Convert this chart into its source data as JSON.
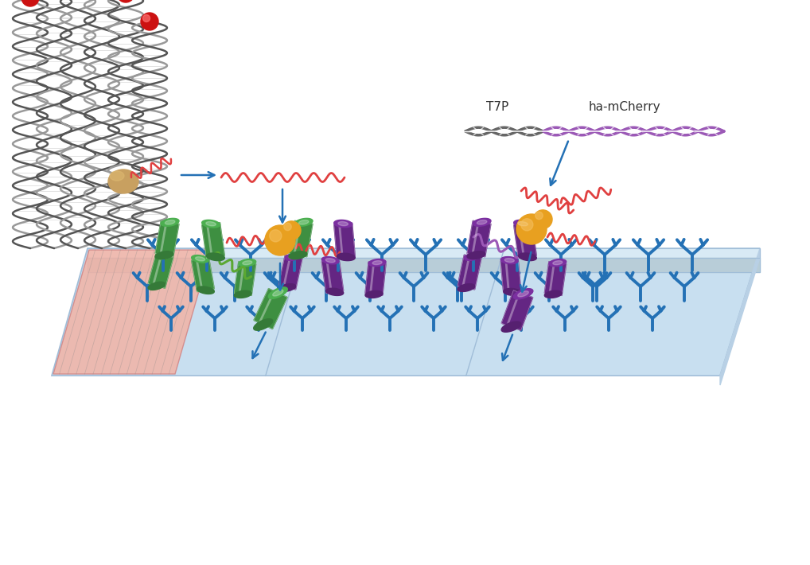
{
  "bg_color": "#ffffff",
  "label_T7P": "T7P",
  "label_hamCherry": "ha-mCherry",
  "dna_gray_color": "#777777",
  "dna_purple_color": "#9B59B6",
  "rna_color": "#E04040",
  "rna_green_color": "#5BA832",
  "rna_purple_color": "#9B59B6",
  "ribosome_color": "#E8A020",
  "protein_green_color": "#4CAF50",
  "protein_purple_color": "#7B2FA0",
  "antibody_color": "#2471B5",
  "chip_top_color": "#C8DFF0",
  "chip_edge_color": "#A0BDD8",
  "chip_side_color": "#D8EAF5",
  "chip_bottom_color": "#B8CDD8",
  "red_zone_color": "#F5B0A0",
  "arrow_color": "#2471B5",
  "gene_top_color": "#CC1111",
  "polymerase_color": "#C8A060"
}
